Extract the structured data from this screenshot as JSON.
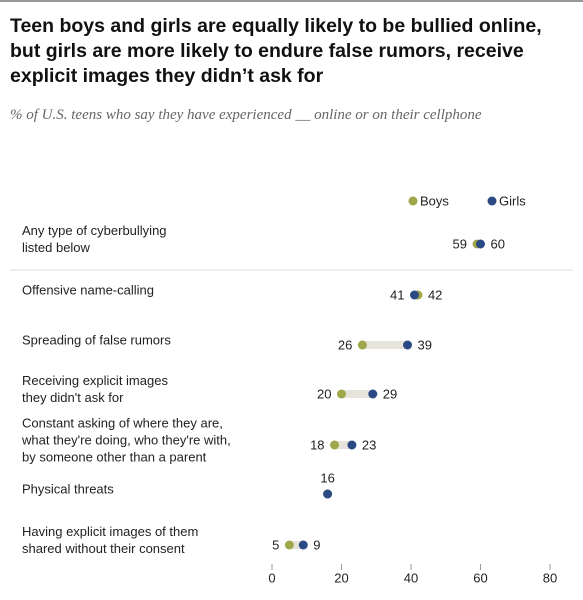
{
  "chart_data": {
    "type": "dot",
    "title": "Teen boys and girls are equally likely to be bullied online, but girls are more likely to endure false rumors, receive explicit images they didn’t ask for",
    "subtitle": "% of U.S. teens who say they have experienced __ online or on their cellphone",
    "categories": [
      "Any type of cyberbullying\nlisted below",
      "Offensive name-calling",
      "Spreading of false rumors",
      "Receiving explicit images\nthey didn't ask for",
      "Constant asking of where they are,\nwhat they're doing, who they're with,\nby someone other than a parent",
      "Physical threats",
      "Having explicit images of them\nshared without their consent"
    ],
    "series": [
      {
        "name": "Boys",
        "color": "#a0a64a",
        "values": [
          59,
          42,
          26,
          20,
          18,
          16,
          5
        ]
      },
      {
        "name": "Girls",
        "color": "#2b4a84",
        "values": [
          60,
          41,
          39,
          29,
          23,
          16,
          9
        ]
      }
    ],
    "xlim": [
      0,
      80
    ],
    "xticks": [
      0,
      20,
      40,
      60,
      80
    ]
  }
}
